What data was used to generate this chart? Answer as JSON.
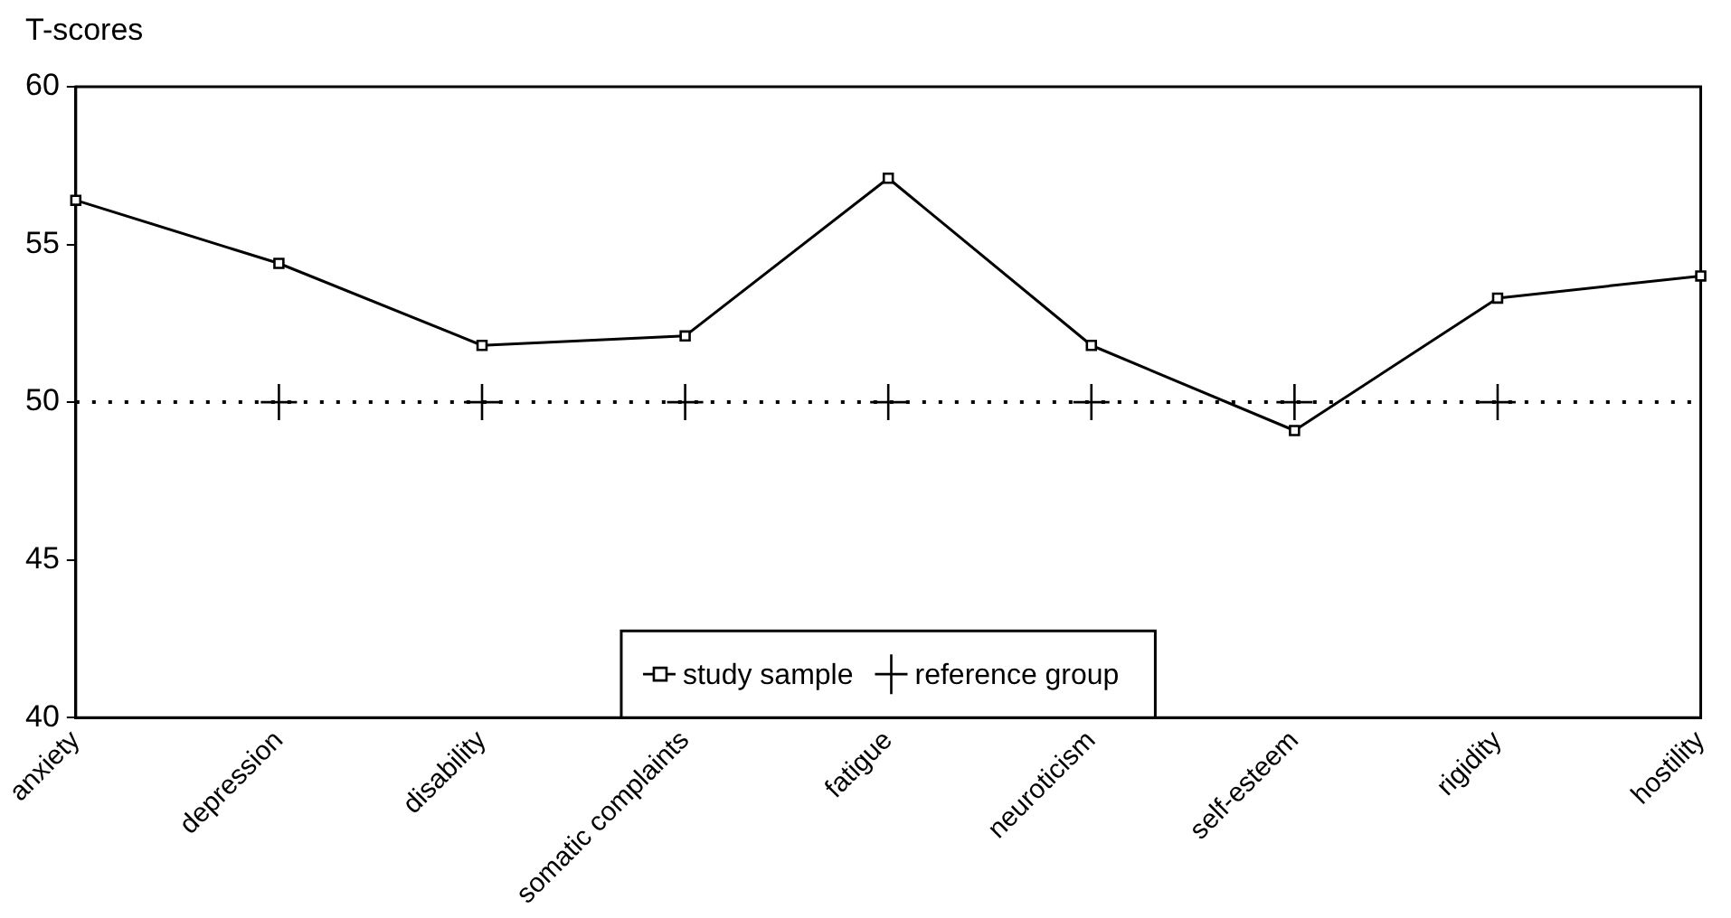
{
  "chart_data": {
    "type": "line",
    "ylabel": "T-scores",
    "categories": [
      "anxiety",
      "depression",
      "disability",
      "somatic complaints",
      "fatigue",
      "neuroticism",
      "self-esteem",
      "rigidity",
      "hostility"
    ],
    "series": [
      {
        "name": "study sample",
        "color": "#000000",
        "marker": "square",
        "values": [
          56.4,
          54.4,
          51.8,
          52.1,
          57.1,
          51.8,
          49.1,
          53.3,
          54.0
        ]
      },
      {
        "name": "reference group",
        "color": "#000000",
        "type": "scatter",
        "marker": "cross",
        "values": [
          null,
          50,
          50,
          50,
          50,
          50,
          50,
          50,
          null
        ]
      }
    ],
    "ylim": [
      40,
      60
    ],
    "yticks": [
      40,
      45,
      50,
      55,
      60
    ],
    "ref_lines": [
      {
        "axis": "y",
        "value": 50,
        "color": "#000000",
        "line_style": "dotted"
      }
    ],
    "grid": false,
    "legend": "bottom"
  }
}
